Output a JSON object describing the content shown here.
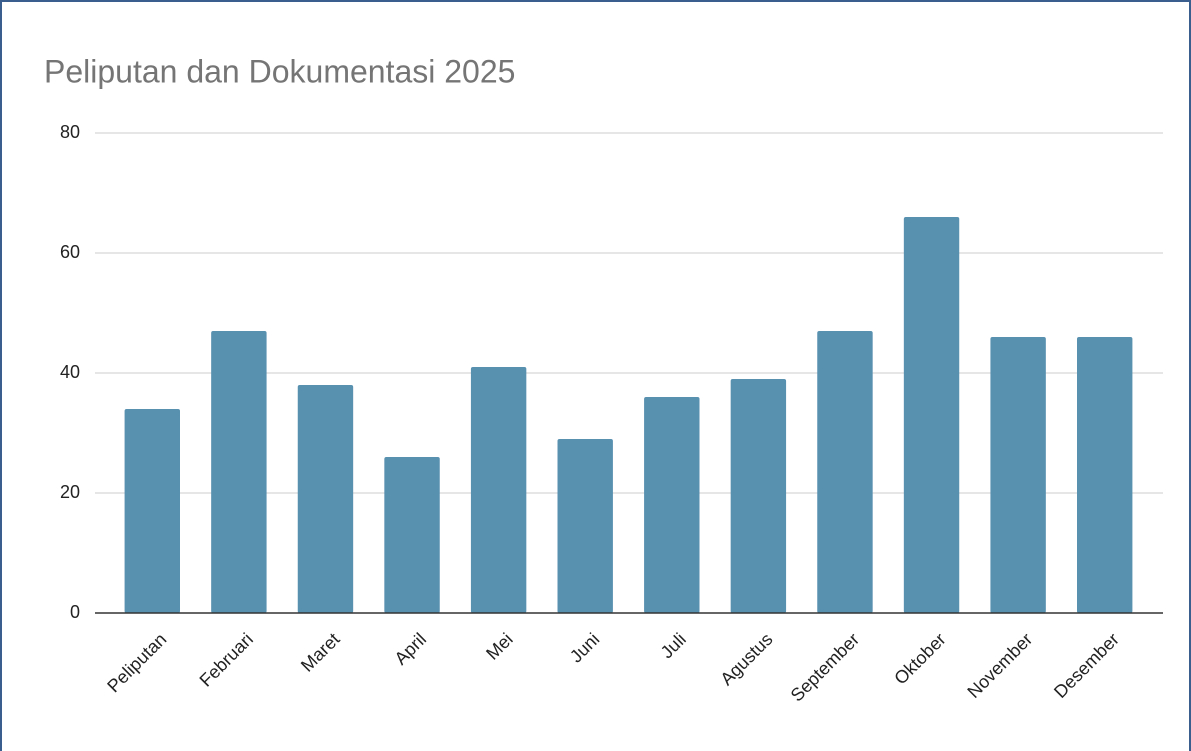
{
  "chart_data": {
    "type": "bar",
    "title": "Peliputan dan Dokumentasi 2025",
    "categories": [
      "Peliputan",
      "Februari",
      "Maret",
      "April",
      "Mei",
      "Juni",
      "Juli",
      "Agustus",
      "September",
      "Oktober",
      "November",
      "Desember"
    ],
    "values": [
      34,
      47,
      38,
      26,
      41,
      29,
      36,
      39,
      47,
      66,
      46,
      46
    ],
    "color": "#5890b0",
    "ylim": [
      0,
      80
    ],
    "yticks": [
      0,
      20,
      40,
      60,
      80
    ],
    "grid": true
  }
}
